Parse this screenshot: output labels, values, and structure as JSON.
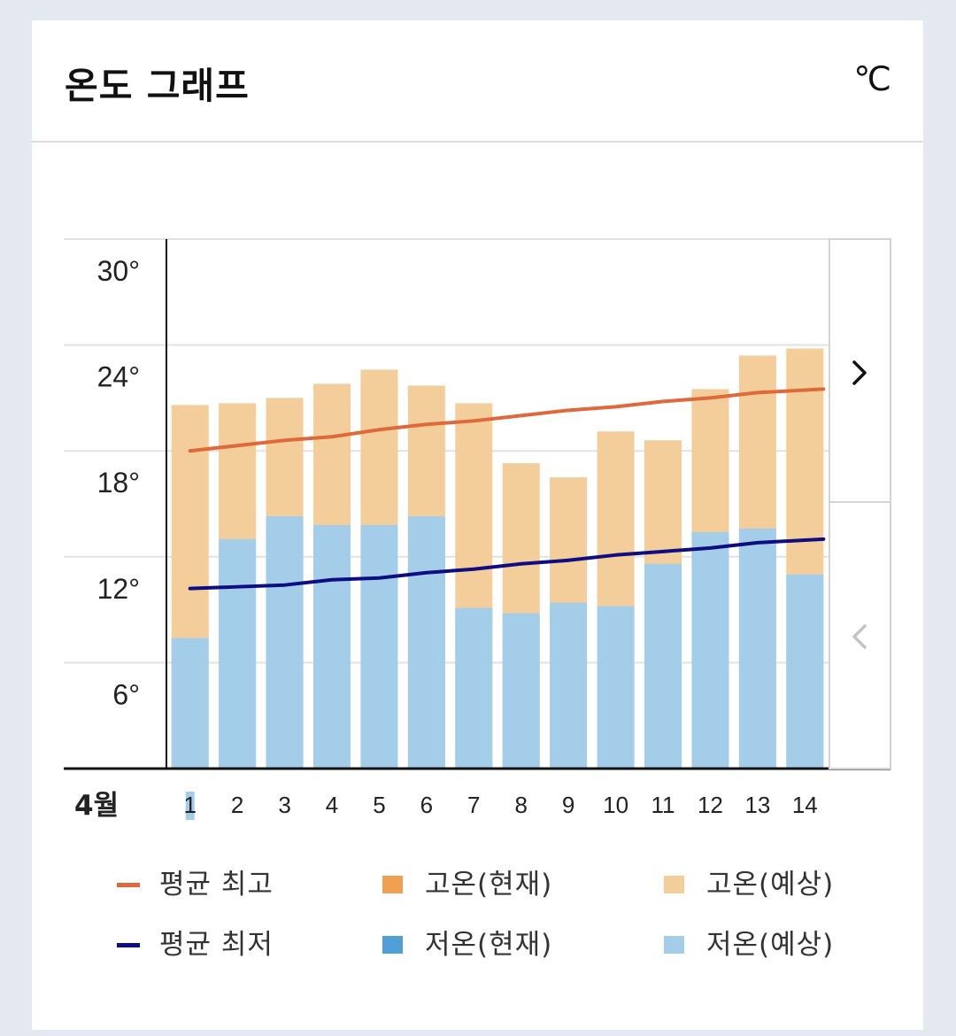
{
  "header": {
    "title": "온도 그래프",
    "unit": "℃"
  },
  "chart_data": {
    "type": "bar",
    "month_label": "4월",
    "categories": [
      "1",
      "2",
      "3",
      "4",
      "5",
      "6",
      "7",
      "8",
      "9",
      "10",
      "11",
      "12",
      "13",
      "14"
    ],
    "ylim": [
      0,
      30
    ],
    "y_ticks": [
      "30°",
      "24°",
      "18°",
      "12°",
      "6°"
    ],
    "y_tick_values": [
      30,
      24,
      18,
      12,
      6
    ],
    "grid": true,
    "series": [
      {
        "name": "고온(예상)",
        "type": "bar",
        "color": "#f3ce9a",
        "values": [
          20.6,
          20.7,
          21.0,
          21.8,
          22.6,
          21.7,
          20.7,
          17.3,
          16.5,
          19.1,
          18.6,
          21.5,
          23.4,
          23.8
        ]
      },
      {
        "name": "저온(예상)",
        "type": "bar",
        "color": "#a4cde9",
        "values": [
          7.4,
          13.0,
          14.3,
          13.8,
          13.8,
          14.3,
          9.1,
          8.8,
          9.4,
          9.2,
          11.6,
          13.4,
          13.6,
          11.0
        ]
      },
      {
        "name": "평균 최고",
        "type": "line",
        "color": "#e0693a",
        "values": [
          18.0,
          18.3,
          18.6,
          18.8,
          19.2,
          19.5,
          19.7,
          20.0,
          20.3,
          20.5,
          20.8,
          21.0,
          21.3,
          21.5
        ]
      },
      {
        "name": "평균 최저",
        "type": "line",
        "color": "#0e0e82",
        "values": [
          10.2,
          10.3,
          10.4,
          10.7,
          10.8,
          11.1,
          11.3,
          11.6,
          11.8,
          12.1,
          12.3,
          12.5,
          12.8,
          13.0
        ]
      }
    ],
    "legend": [
      {
        "label": "평균 최고",
        "kind": "line",
        "color": "#e0693a"
      },
      {
        "label": "고온(현재)",
        "kind": "box",
        "color": "#f0a050"
      },
      {
        "label": "고온(예상)",
        "kind": "box",
        "color": "#f3ce9a"
      },
      {
        "label": "평균 최저",
        "kind": "line",
        "color": "#0e0e82"
      },
      {
        "label": "저온(현재)",
        "kind": "box",
        "color": "#4f9fd8"
      },
      {
        "label": "저온(예상)",
        "kind": "box",
        "color": "#a4cde9"
      }
    ],
    "nav": {
      "next": "next-page",
      "prev": "prev-page"
    }
  }
}
